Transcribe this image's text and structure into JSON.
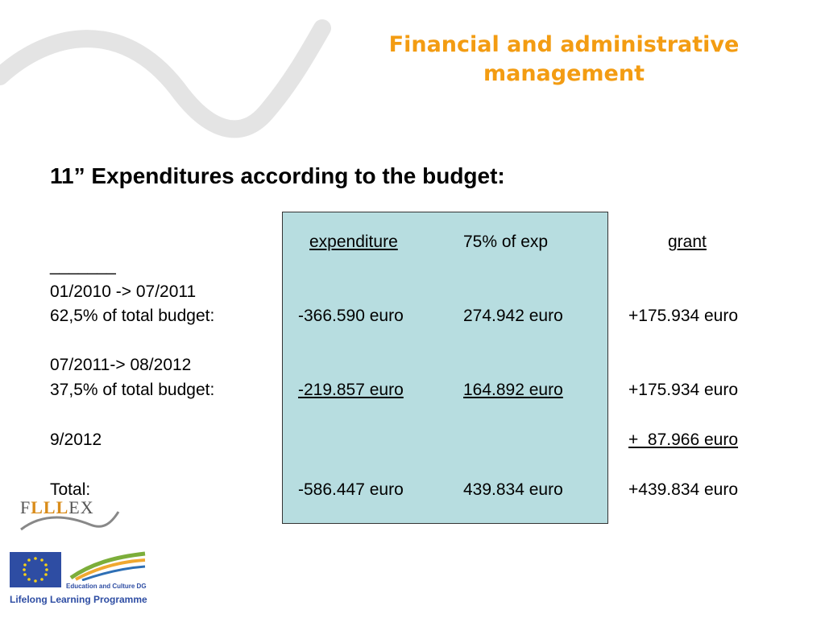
{
  "title": "Financial and administrative management",
  "heading": "11” Expenditures according to the budget:",
  "table": {
    "headers": {
      "expenditure": "expenditure",
      "pct": "75% of exp",
      "grant": "grant"
    },
    "divider": "_______",
    "rows": [
      {
        "period": "01/2010 -> 07/2011",
        "share": "62,5% of total budget:",
        "expenditure": "-366.590 euro",
        "pct": "274.942 euro",
        "grant": "+175.934 euro"
      },
      {
        "period": "07/2011-> 08/2012",
        "share": "37,5% of total budget:",
        "expenditure": "-219.857 euro",
        "pct": "164.892 euro",
        "grant": "+175.934 euro"
      },
      {
        "period": "9/2012",
        "grant": "+  87.966 euro"
      },
      {
        "share": "Total:",
        "expenditure": "-586.447 euro",
        "pct": "439.834 euro",
        "grant": "+439.834 euro"
      }
    ]
  },
  "logos": {
    "flllex": {
      "f": "F",
      "lll": "LLL",
      "ex": "EX"
    },
    "dg": "Education and Culture DG",
    "programme": "Lifelong Learning Programme"
  },
  "colors": {
    "title": "#f39c12",
    "table_bg": "#b7dde0",
    "eu_blue": "#2e4da3"
  }
}
